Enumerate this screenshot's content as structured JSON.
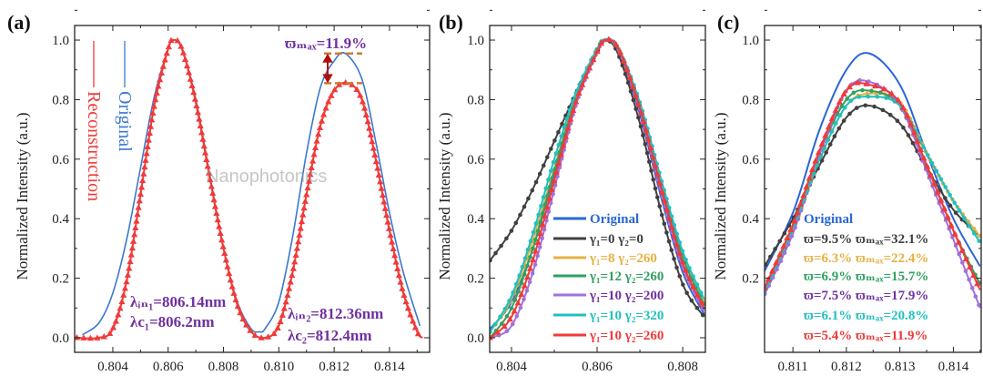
{
  "chart_data": [
    {
      "type": "line",
      "panel_label": "(a)",
      "ylabel": "Normalized Intensity (a.u.)",
      "xlim": [
        0.80262,
        0.81545
      ],
      "ylim": [
        -0.049,
        1.049
      ],
      "xticks": [
        "0.804",
        "0.806",
        "0.808",
        "0.810",
        "0.812",
        "0.814"
      ],
      "xtick_values": [
        0.804,
        0.806,
        0.808,
        0.81,
        0.812,
        0.814
      ],
      "yticks": [
        "0.0",
        "0.2",
        "0.4",
        "0.6",
        "0.8",
        "1.0"
      ],
      "ytick_values": [
        0,
        0.2,
        0.4,
        0.6,
        0.8,
        1.0
      ],
      "series": [
        {
          "name": "Original",
          "color": "#3a78d0",
          "marker": "none",
          "x": [
            0.8029,
            0.8035,
            0.804,
            0.8045,
            0.805,
            0.8055,
            0.806,
            0.8062,
            0.8065,
            0.807,
            0.8075,
            0.808,
            0.8085,
            0.809,
            0.8093,
            0.8095,
            0.81,
            0.8105,
            0.811,
            0.8115,
            0.812,
            0.8124,
            0.813,
            0.8135,
            0.814,
            0.8145,
            0.8151
          ],
          "y": [
            0.01,
            0.05,
            0.15,
            0.33,
            0.57,
            0.81,
            0.97,
            1.0,
            0.97,
            0.8,
            0.55,
            0.3,
            0.12,
            0.03,
            0.02,
            0.03,
            0.12,
            0.34,
            0.62,
            0.84,
            0.93,
            0.955,
            0.87,
            0.66,
            0.42,
            0.22,
            0.04
          ]
        },
        {
          "name": "Reconstruction",
          "color": "#f03a3a",
          "marker": "triangle",
          "x": [
            0.8027,
            0.8035,
            0.804,
            0.8045,
            0.805,
            0.8055,
            0.806,
            0.8062,
            0.8065,
            0.807,
            0.8075,
            0.808,
            0.8085,
            0.809,
            0.8095,
            0.81,
            0.8105,
            0.811,
            0.8115,
            0.812,
            0.8125,
            0.813,
            0.8135,
            0.814,
            0.8145,
            0.815,
            0.8152
          ],
          "y": [
            0.0,
            0.0,
            0.03,
            0.19,
            0.48,
            0.78,
            0.97,
            1.0,
            0.97,
            0.79,
            0.54,
            0.3,
            0.11,
            0.02,
            0.0,
            0.04,
            0.22,
            0.48,
            0.71,
            0.83,
            0.855,
            0.8,
            0.6,
            0.36,
            0.15,
            0.02,
            0.0
          ]
        }
      ],
      "legend_vertical": [
        {
          "label": "Reconstruction",
          "color": "#f03a3a"
        },
        {
          "label": "Original",
          "color": "#3a78d0"
        }
      ],
      "annotations": {
        "wmax": "ϖₘₐₓ=11.9%",
        "lambda_in1": "λᵢₙ₁=806.14nm",
        "lambda_c1": "λc₁=806.2nm",
        "lambda_in2": "λᵢₙ₂=812.36nm",
        "lambda_c2": "λc₂=812.4nm",
        "dash_levels": [
          0.955,
          0.855
        ]
      }
    },
    {
      "type": "line",
      "panel_label": "(b)",
      "ylabel": "Normalized Intensity (a.u.)",
      "xlim": [
        0.80349,
        0.80853
      ],
      "ylim": [
        -0.049,
        1.049
      ],
      "xticks": [
        "0.804",
        "0.806",
        "0.808"
      ],
      "xtick_values": [
        0.804,
        0.806,
        0.808
      ],
      "yticks": [
        "0.0",
        "0.2",
        "0.4",
        "0.6",
        "0.8",
        "1.0"
      ],
      "ytick_values": [
        0,
        0.2,
        0.4,
        0.6,
        0.8,
        1.0
      ],
      "x": [
        0.8035,
        0.804,
        0.8045,
        0.805,
        0.8055,
        0.806,
        0.8062,
        0.8065,
        0.807,
        0.8075,
        0.808,
        0.8085
      ],
      "series": [
        {
          "name": "Original",
          "color": "#2a66d8",
          "marker": "none",
          "y": [
            0.03,
            0.12,
            0.3,
            0.55,
            0.8,
            0.97,
            1.0,
            0.96,
            0.75,
            0.47,
            0.22,
            0.08
          ]
        },
        {
          "name": "γ₁=0 γ₂=0",
          "color": "#404040",
          "marker": "dot",
          "y": [
            0.26,
            0.36,
            0.5,
            0.66,
            0.82,
            0.96,
            1.0,
            0.95,
            0.72,
            0.42,
            0.18,
            0.07
          ]
        },
        {
          "name": "γ₁=8 γ₂=260",
          "color": "#e8b040",
          "marker": "dot",
          "y": [
            0.02,
            0.13,
            0.33,
            0.57,
            0.81,
            0.97,
            1.0,
            0.97,
            0.78,
            0.52,
            0.28,
            0.12
          ]
        },
        {
          "name": "γ₁=12 γ₂=260",
          "color": "#30a060",
          "marker": "dot",
          "y": [
            0.0,
            0.1,
            0.3,
            0.56,
            0.8,
            0.97,
            1.0,
            0.97,
            0.78,
            0.51,
            0.27,
            0.11
          ]
        },
        {
          "name": "γ₁=10 γ₂=200",
          "color": "#a070e0",
          "marker": "dot",
          "y": [
            0.0,
            0.04,
            0.22,
            0.5,
            0.78,
            0.96,
            1.0,
            0.97,
            0.77,
            0.49,
            0.24,
            0.09
          ]
        },
        {
          "name": "γ₁=10 γ₂=320",
          "color": "#20c0c0",
          "marker": "dot",
          "y": [
            0.02,
            0.14,
            0.35,
            0.6,
            0.82,
            0.97,
            1.0,
            0.97,
            0.79,
            0.53,
            0.29,
            0.13
          ]
        },
        {
          "name": "γ₁=10 γ₂=260",
          "color": "#f03a3a",
          "marker": "triangle",
          "y": [
            0.0,
            0.07,
            0.26,
            0.53,
            0.79,
            0.96,
            1.0,
            0.97,
            0.77,
            0.5,
            0.25,
            0.1
          ]
        }
      ],
      "legend_text_colors": [
        "#2a66d8",
        "#404040",
        "#e8b040",
        "#30a060",
        "#7030a0",
        "#20c0c0",
        "#f03a3a"
      ],
      "legend_placement": "bottom-right"
    },
    {
      "type": "line",
      "panel_label": "(c)",
      "ylabel": "Normalized Intensity (a.u.)",
      "xlim": [
        0.81047,
        0.81452
      ],
      "ylim": [
        -0.049,
        1.049
      ],
      "xticks": [
        "0.811",
        "0.812",
        "0.813",
        "0.814"
      ],
      "xtick_values": [
        0.811,
        0.812,
        0.813,
        0.814
      ],
      "yticks": [
        "0.2",
        "0.4",
        "0.6",
        "0.8",
        "1.0"
      ],
      "ytick_values": [
        0.2,
        0.4,
        0.6,
        0.8,
        1.0
      ],
      "x": [
        0.8104,
        0.811,
        0.8115,
        0.812,
        0.81243,
        0.813,
        0.8135,
        0.814,
        0.8145
      ],
      "series": [
        {
          "name": "Original",
          "color": "#2a66d8",
          "marker": "none",
          "y": [
            0.2,
            0.42,
            0.7,
            0.9,
            0.955,
            0.85,
            0.62,
            0.4,
            0.24
          ]
        },
        {
          "name": "ϖ=9.5%  ϖₘₐₓ=32.1%",
          "color": "#404040",
          "marker": "dot",
          "y": [
            0.22,
            0.4,
            0.58,
            0.74,
            0.78,
            0.72,
            0.57,
            0.43,
            0.34
          ]
        },
        {
          "name": "ϖ=6.3%  ϖₘₐₓ=22.4%",
          "color": "#e8b040",
          "marker": "dot",
          "y": [
            0.13,
            0.36,
            0.6,
            0.78,
            0.82,
            0.79,
            0.62,
            0.46,
            0.34
          ]
        },
        {
          "name": "ϖ=6.9%  ϖₘₐₓ=15.7%",
          "color": "#30a060",
          "marker": "dot",
          "y": [
            0.13,
            0.37,
            0.62,
            0.8,
            0.83,
            0.78,
            0.58,
            0.36,
            0.18
          ]
        },
        {
          "name": "ϖ=7.5%  ϖₘₐₓ=17.9%",
          "color": "#a070e0",
          "marker": "dot",
          "y": [
            0.12,
            0.35,
            0.62,
            0.83,
            0.86,
            0.78,
            0.56,
            0.33,
            0.1
          ]
        },
        {
          "name": "ϖ=6.1%  ϖₘₐₓ=20.8%",
          "color": "#20c0c0",
          "marker": "dot",
          "y": [
            0.13,
            0.37,
            0.6,
            0.78,
            0.81,
            0.78,
            0.62,
            0.46,
            0.32
          ]
        },
        {
          "name": "ϖ=5.4%  ϖₘₐₓ=11.9%",
          "color": "#f03a3a",
          "marker": "triangle",
          "y": [
            0.14,
            0.38,
            0.63,
            0.83,
            0.85,
            0.79,
            0.58,
            0.36,
            0.16
          ]
        }
      ],
      "legend_text_colors": [
        "#2a66d8",
        "#404040",
        "#e8b040",
        "#30a060",
        "#7030a0",
        "#20c0c0",
        "#f03a3a"
      ],
      "legend_placement": "bottom-left"
    }
  ],
  "watermark": "Nanophotonics"
}
